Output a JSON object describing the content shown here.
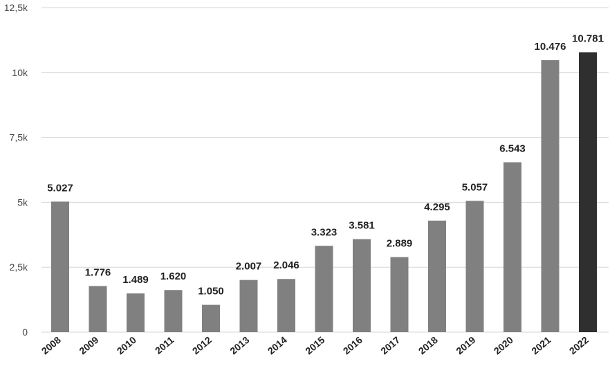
{
  "chart_data": {
    "type": "bar",
    "categories": [
      "2008",
      "2009",
      "2010",
      "2011",
      "2012",
      "2013",
      "2014",
      "2015",
      "2016",
      "2017",
      "2018",
      "2019",
      "2020",
      "2021",
      "2022"
    ],
    "values": [
      5027,
      1776,
      1489,
      1620,
      1050,
      2007,
      2046,
      3323,
      3581,
      2889,
      4295,
      5057,
      6543,
      10476,
      10781
    ],
    "value_labels": [
      "5.027",
      "1.776",
      "1.489",
      "1.620",
      "1.050",
      "2.007",
      "2.046",
      "3.323",
      "3.581",
      "2.889",
      "4.295",
      "5.057",
      "6.543",
      "10.476",
      "10.781"
    ],
    "y_ticks": [
      0,
      2500,
      5000,
      7500,
      10000,
      12500
    ],
    "y_tick_labels": [
      "0",
      "2,5k",
      "5k",
      "7,5k",
      "10k",
      "12,5k"
    ],
    "ylim": [
      0,
      12500
    ],
    "grid": true,
    "legend": "none",
    "title": "",
    "xlabel": "",
    "ylabel": "",
    "colors": {
      "bar": "#808080",
      "highlight_bar": "#2f2f2f",
      "grid": "#d6d6d6"
    },
    "highlight_index": 14
  }
}
